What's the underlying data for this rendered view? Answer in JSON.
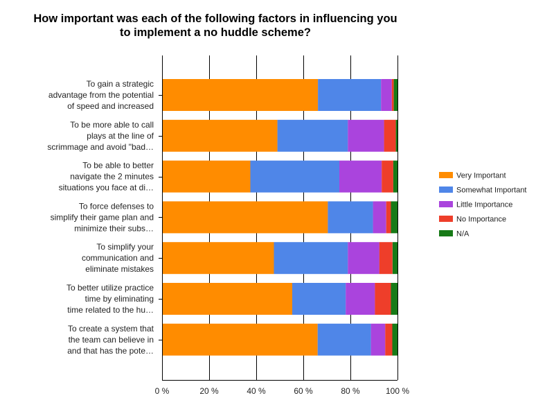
{
  "chart_data": {
    "type": "bar",
    "orientation": "horizontal",
    "stacked": true,
    "title_lines": [
      "How important was each of the following factors in influencing you",
      "to implement a no huddle scheme?"
    ],
    "categories": [
      [
        "To gain a strategic",
        "advantage from the potential",
        "of speed and increased"
      ],
      [
        "To be more able to call",
        "plays at the line of",
        "scrimmage and avoid \"bad…"
      ],
      [
        "To be able to better",
        "navigate the 2 minutes",
        "situations you face at di…"
      ],
      [
        "To force defenses to",
        "simplify their game plan and",
        "minimize their subs…"
      ],
      [
        "To simplify your",
        "communication and",
        "eliminate mistakes"
      ],
      [
        "To better utilize practice",
        "time by eliminating",
        "time related to the hu…"
      ],
      [
        "To create a system that",
        "the team can believe in",
        "and that has the pote…"
      ]
    ],
    "series": [
      {
        "name": "Very Important",
        "color": "#ff8c00",
        "values": [
          66.2,
          49.0,
          37.5,
          70.4,
          47.5,
          55.3,
          66.1
        ]
      },
      {
        "name": "Somewhat Important",
        "color": "#4f86e8",
        "values": [
          26.8,
          29.9,
          37.8,
          19.2,
          31.4,
          22.7,
          22.6
        ]
      },
      {
        "name": "Little Importance",
        "color": "#aa44dd",
        "values": [
          4.6,
          15.4,
          18.0,
          5.6,
          13.4,
          12.4,
          6.1
        ]
      },
      {
        "name": "No Importance",
        "color": "#ee3e2a",
        "values": [
          0.8,
          5.0,
          4.9,
          2.0,
          5.6,
          6.8,
          3.0
        ]
      },
      {
        "name": "N/A",
        "color": "#177a17",
        "values": [
          1.6,
          0.7,
          1.8,
          2.8,
          2.1,
          2.8,
          2.2
        ]
      }
    ],
    "x_ticks": [
      "0 %",
      "20 %",
      "40 %",
      "60 %",
      "80 %",
      "100 %"
    ],
    "xlim": [
      0,
      100
    ],
    "grid": true,
    "legend_position": "right"
  }
}
